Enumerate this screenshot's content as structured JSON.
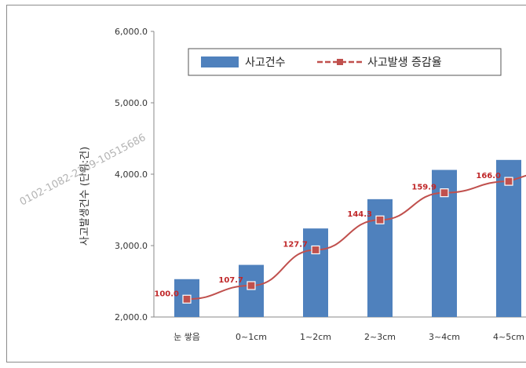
{
  "chart_data": {
    "type": "bar",
    "categories": [
      "눈 쌓음",
      "0~1cm",
      "1~2cm",
      "2~3cm",
      "3~4cm",
      "4~5cm"
    ],
    "ylabel": "사고발생건수 (단위:건)",
    "ylim": [
      2000,
      6000
    ],
    "yticks": [
      "2,000.0",
      "3,000.0",
      "4,000.0",
      "5,000.0",
      "6,000.0"
    ],
    "ytick_values": [
      2000,
      3000,
      4000,
      5000,
      6000
    ],
    "grid": false,
    "legend_placement": "top",
    "series": [
      {
        "name": "사고건수",
        "kind": "bar",
        "color": "#4f81bd",
        "values": [
          2530,
          2730,
          3240,
          3650,
          4060,
          4200
        ]
      },
      {
        "name": "사고발생 증감율",
        "kind": "line",
        "color": "#c0504d",
        "marker": "square",
        "plot_values": [
          2250,
          2440,
          2940,
          3360,
          3740,
          3900
        ],
        "labels": [
          "100.0",
          "107.7",
          "127.7",
          "144.3",
          "159.9",
          "166.0"
        ]
      }
    ]
  },
  "watermark": "0102-1082-2369-10515686"
}
